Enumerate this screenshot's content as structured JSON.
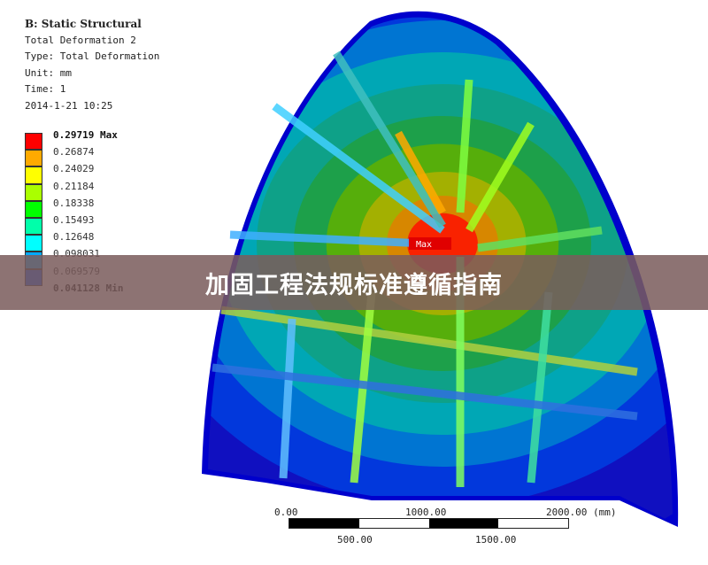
{
  "header": {
    "analysis": "B: Static Structural",
    "result": "Total Deformation 2",
    "type": "Type: Total Deformation",
    "unit": "Unit: mm",
    "time": "Time: 1",
    "date": "2014-1-21 10:25"
  },
  "legend": {
    "labels": [
      "0.29719 Max",
      "0.26874",
      "0.24029",
      "0.21184",
      "0.18338",
      "0.15493",
      "0.12648",
      "0.098031",
      "0.069579",
      "0.041128 Min"
    ],
    "colors": [
      "#ff0000",
      "#ffaa00",
      "#ffff00",
      "#aaff00",
      "#00ff00",
      "#00ffaa",
      "#00ffff",
      "#00aaff",
      "#0055ff",
      "#0000ff"
    ]
  },
  "probe": {
    "max_label": "Max"
  },
  "scale_bar": {
    "top_labels": [
      "0.00",
      "1000.00",
      "2000.00 (mm)"
    ],
    "bottom_labels": [
      "500.00",
      "1500.00"
    ]
  },
  "banner": {
    "title": "加固工程法规标准遵循指南"
  }
}
